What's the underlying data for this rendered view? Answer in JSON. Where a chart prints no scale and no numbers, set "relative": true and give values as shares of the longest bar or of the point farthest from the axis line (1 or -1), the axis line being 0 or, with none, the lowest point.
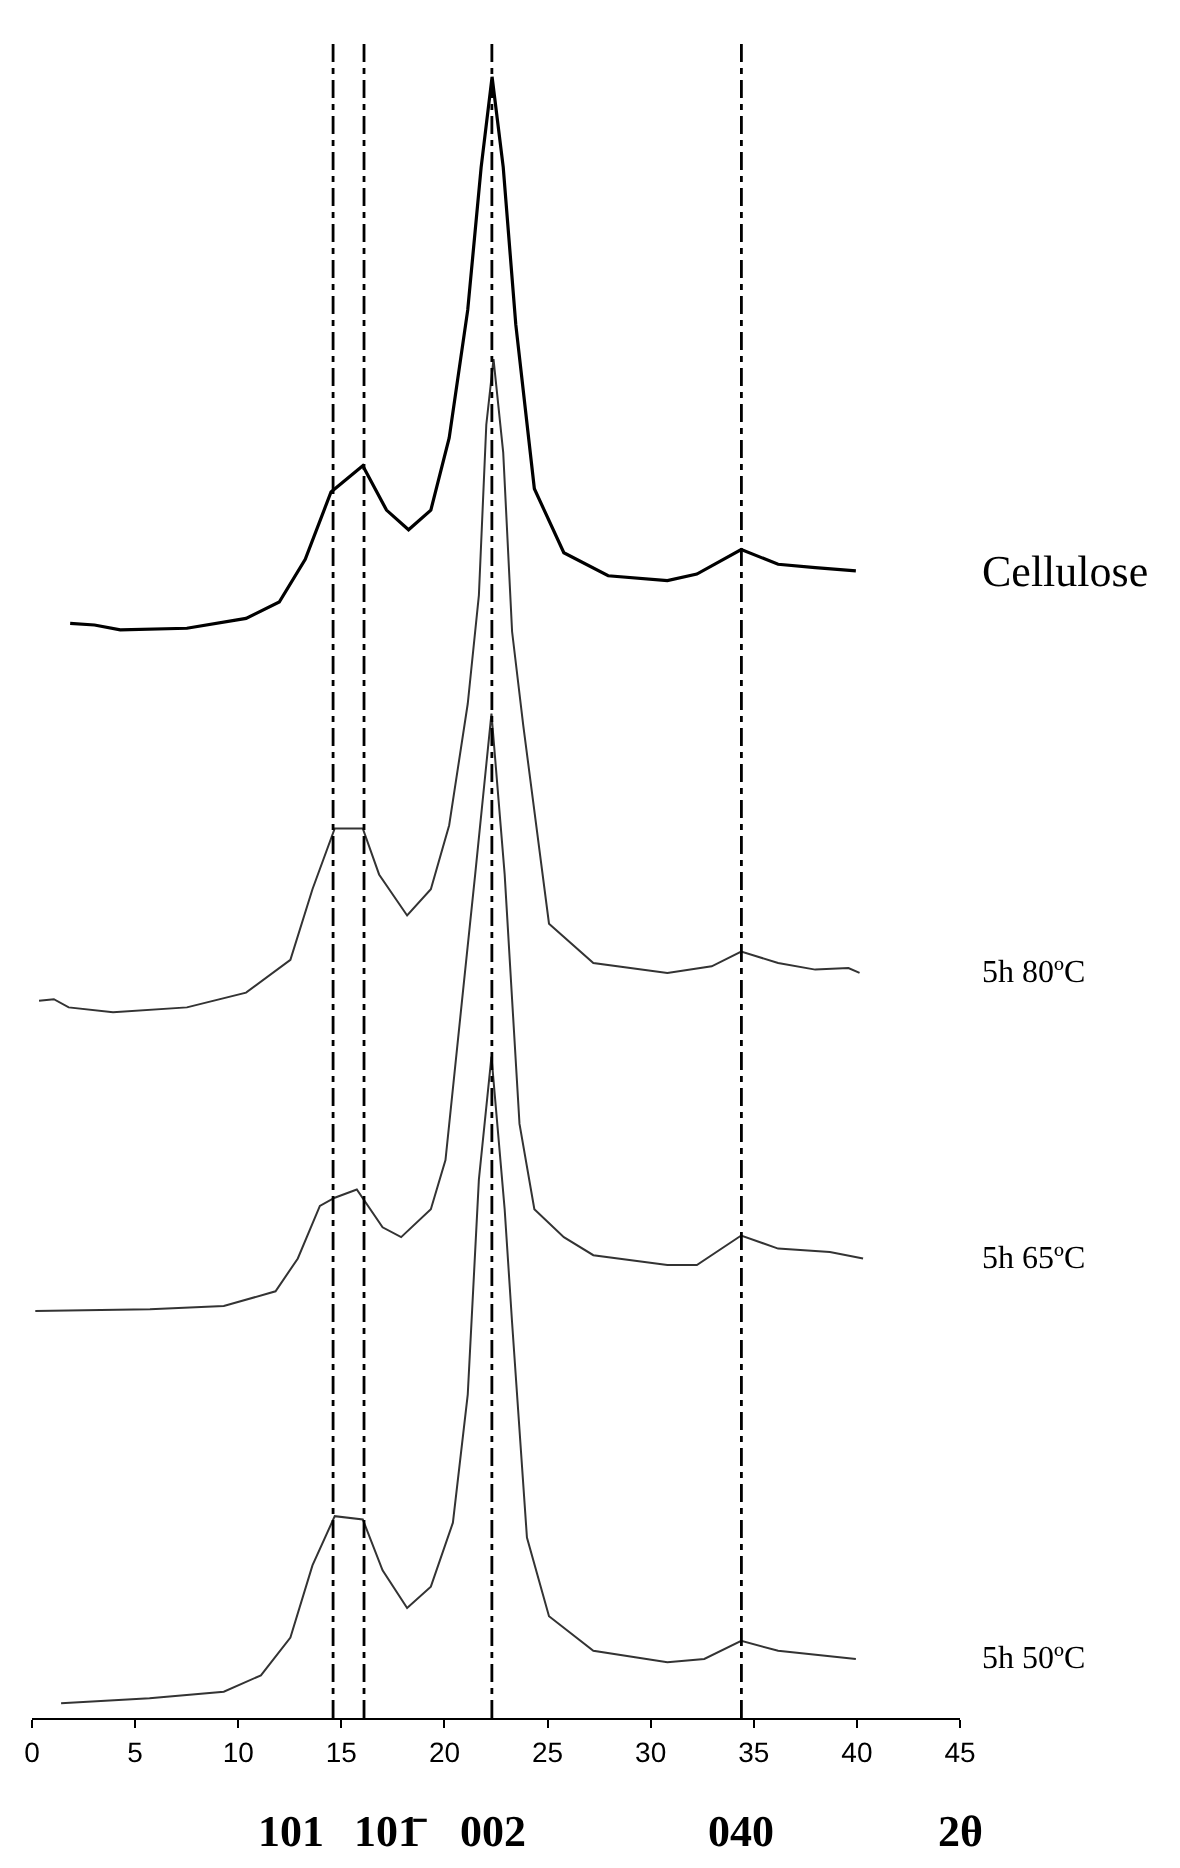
{
  "chart_data": {
    "type": "line",
    "relative": true,
    "xlabel": "2θ",
    "xlim": [
      0,
      45
    ],
    "xticks": [
      0,
      5,
      10,
      15,
      20,
      25,
      30,
      35,
      40,
      45
    ],
    "legend": false,
    "marker": "none",
    "line_style": "solid",
    "series": [
      {
        "name": "Cellulose",
        "color": "#000000",
        "x": [
          1.85,
          3.03,
          4.28,
          7.51,
          10.38,
          11.99,
          13.25,
          14.5,
          16.04,
          17.19,
          18.26,
          19.34,
          20.23,
          21.13,
          21.78,
          22.31,
          22.85,
          23.46,
          24.36,
          25.79,
          27.94,
          30.81,
          32.24,
          34.39,
          36.18,
          37.98,
          39.95
        ],
        "values": [
          0.667,
          0.666,
          0.663,
          0.664,
          0.67,
          0.68,
          0.706,
          0.747,
          0.763,
          0.736,
          0.724,
          0.736,
          0.78,
          0.858,
          0.945,
          1.0,
          0.945,
          0.849,
          0.749,
          0.71,
          0.696,
          0.693,
          0.697,
          0.712,
          0.703,
          0.701,
          0.699
        ]
      },
      {
        "name": "5h 80ºC",
        "color": "#333333",
        "x": [
          0.34,
          1.06,
          1.78,
          3.93,
          7.51,
          10.38,
          12.53,
          13.6,
          14.68,
          16.04,
          16.83,
          18.19,
          19.34,
          20.23,
          21.13,
          21.67,
          22.03,
          22.38,
          22.85,
          23.28,
          23.82,
          25.07,
          27.22,
          30.81,
          32.96,
          34.39,
          36.18,
          37.98,
          39.59,
          40.13
        ],
        "values": [
          0.437,
          0.438,
          0.433,
          0.43,
          0.433,
          0.442,
          0.462,
          0.505,
          0.542,
          0.542,
          0.514,
          0.489,
          0.505,
          0.544,
          0.618,
          0.684,
          0.788,
          0.828,
          0.771,
          0.662,
          0.605,
          0.484,
          0.46,
          0.454,
          0.458,
          0.467,
          0.46,
          0.456,
          0.457,
          0.454
        ]
      },
      {
        "name": "5h 65ºC",
        "color": "#333333",
        "x": [
          0.16,
          5.72,
          9.3,
          11.81,
          12.89,
          13.96,
          14.68,
          15.75,
          17.0,
          17.9,
          19.34,
          20.05,
          20.95,
          21.49,
          22.28,
          22.92,
          23.64,
          24.36,
          25.79,
          27.22,
          30.81,
          32.24,
          34.39,
          36.18,
          38.69,
          40.3
        ],
        "values": [
          0.248,
          0.249,
          0.251,
          0.26,
          0.28,
          0.312,
          0.317,
          0.322,
          0.299,
          0.293,
          0.31,
          0.34,
          0.449,
          0.514,
          0.612,
          0.514,
          0.362,
          0.31,
          0.293,
          0.282,
          0.276,
          0.276,
          0.294,
          0.286,
          0.284,
          0.28
        ]
      },
      {
        "name": "5h 50ºC",
        "color": "#333333",
        "x": [
          1.41,
          5.7,
          9.3,
          11.1,
          12.53,
          13.6,
          14.68,
          16.04,
          17.0,
          18.19,
          19.34,
          20.41,
          21.13,
          21.67,
          22.28,
          22.92,
          23.28,
          24.0,
          25.07,
          27.22,
          30.81,
          32.6,
          34.39,
          36.18,
          39.95
        ],
        "values": [
          0.009,
          0.012,
          0.016,
          0.026,
          0.049,
          0.093,
          0.123,
          0.121,
          0.09,
          0.067,
          0.08,
          0.119,
          0.197,
          0.328,
          0.403,
          0.31,
          0.241,
          0.11,
          0.062,
          0.041,
          0.034,
          0.036,
          0.047,
          0.041,
          0.036
        ]
      }
    ],
    "ref_lines": [
      {
        "axis": "x",
        "value": 14.6,
        "color": "#000000",
        "line_style": "dashdot"
      },
      {
        "axis": "x",
        "value": 16.1,
        "color": "#000000",
        "line_style": "dashdot"
      },
      {
        "axis": "x",
        "value": 22.3,
        "color": "#000000",
        "line_style": "dashdot"
      },
      {
        "axis": "x",
        "value": 34.4,
        "color": "#000000",
        "line_style": "dashdot"
      }
    ],
    "annotations": [
      "101",
      "101̄",
      "002",
      "040"
    ]
  }
}
